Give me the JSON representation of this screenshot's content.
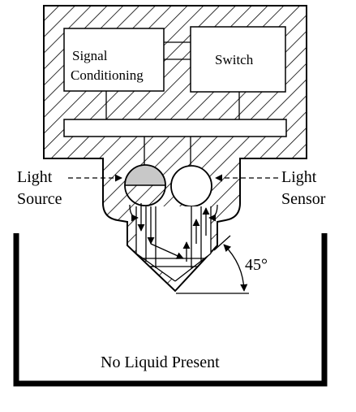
{
  "labels": {
    "signal_conditioning_line1": "Signal",
    "signal_conditioning_line2": "Conditioning",
    "switch": "Switch",
    "light_source_line1": "Light",
    "light_source_line2": "Source",
    "light_sensor_line1": "Light",
    "light_sensor_line2": "Sensor",
    "angle": "45°",
    "status": "No Liquid Present"
  },
  "colors": {
    "stroke": "#000000",
    "background": "#ffffff",
    "source_fill": "#c8c8c8"
  }
}
